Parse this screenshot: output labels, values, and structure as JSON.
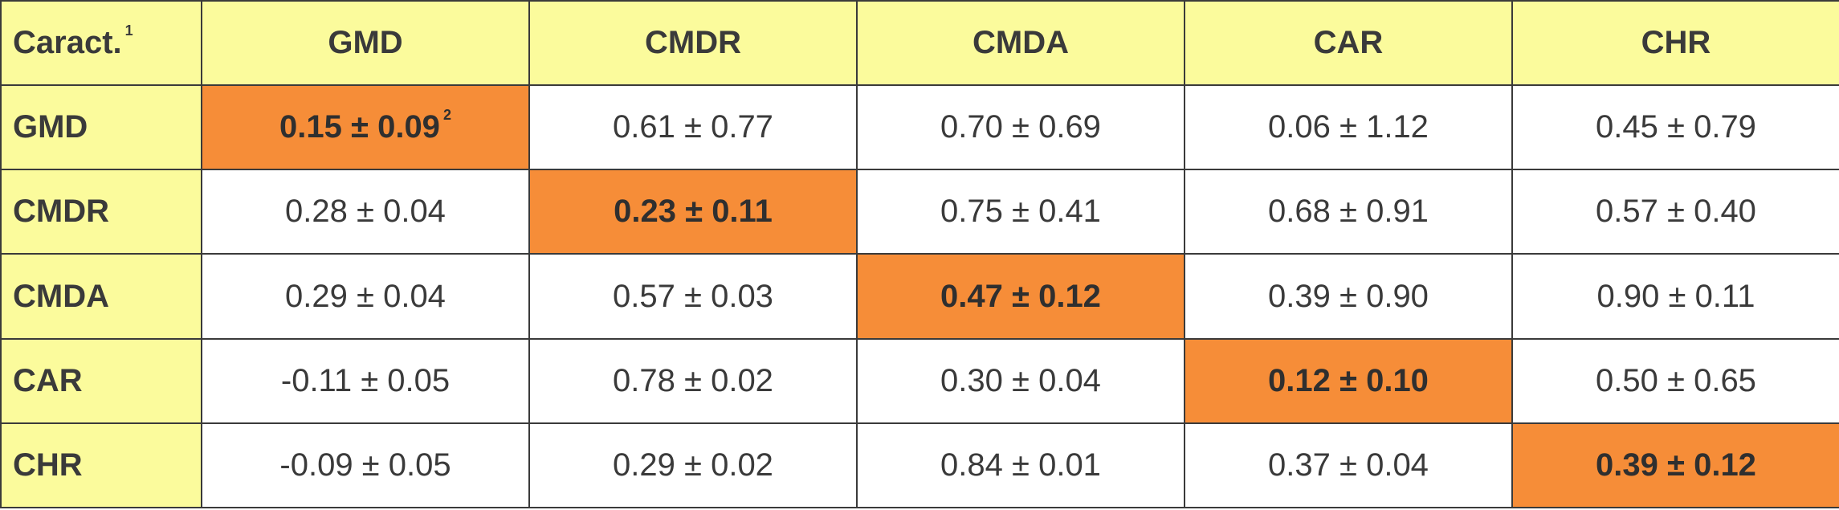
{
  "table": {
    "corner_label": "Caract.",
    "corner_footnote": "1",
    "columns": [
      "GMD",
      "CMDR",
      "CMDA",
      "CAR",
      "CHR"
    ],
    "rows": [
      {
        "label": "GMD",
        "cells": [
          "0.15 ± 0.09",
          "0.61 ± 0.77",
          "0.70 ± 0.69",
          "0.06 ± 1.12",
          "0.45 ± 0.79"
        ]
      },
      {
        "label": "CMDR",
        "cells": [
          "0.28 ± 0.04",
          "0.23 ± 0.11",
          "0.75 ± 0.41",
          "0.68 ± 0.91",
          "0.57 ± 0.40"
        ]
      },
      {
        "label": "CMDA",
        "cells": [
          "0.29 ± 0.04",
          "0.57 ± 0.03",
          "0.47 ± 0.12",
          "0.39 ± 0.90",
          "0.90 ± 0.11"
        ]
      },
      {
        "label": "CAR",
        "cells": [
          "-0.11 ± 0.05",
          "0.78 ± 0.02",
          "0.30 ± 0.04",
          "0.12 ± 0.10",
          "0.50 ± 0.65"
        ]
      },
      {
        "label": "CHR",
        "cells": [
          "-0.09 ± 0.05",
          "0.29 ± 0.02",
          "0.84 ± 0.01",
          "0.37 ± 0.04",
          "0.39 ± 0.12"
        ]
      }
    ],
    "diag_footnote": "2",
    "colors": {
      "header_bg": "#fbfb9c",
      "diagonal_bg": "#f68d38",
      "border": "#3a3a3a"
    }
  }
}
